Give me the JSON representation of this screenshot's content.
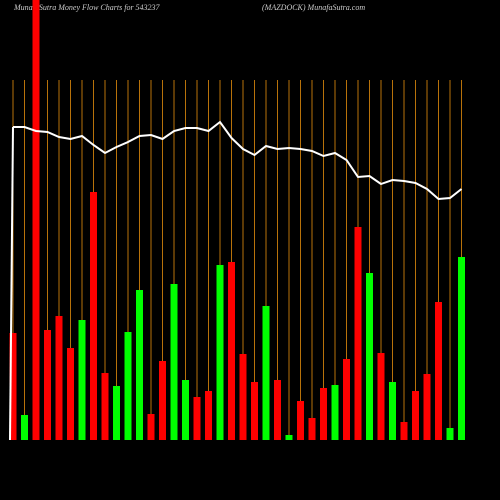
{
  "chart_data": {
    "type": "bar",
    "title": "MunafaSutra  Money Flow  Charts for 543237",
    "subtitle": "(MAZDOCK) MunafaSutra.com",
    "values": [
      107,
      25,
      440,
      110,
      124,
      92,
      120,
      248,
      67,
      54,
      108,
      150,
      26,
      79,
      156,
      60,
      43,
      49,
      175,
      178,
      86,
      58,
      134,
      60,
      5,
      39,
      22,
      52,
      55,
      81,
      213,
      167,
      87,
      58,
      18,
      49,
      66,
      138,
      12,
      183
    ],
    "colors": [
      "#ff0000",
      "#00ff00",
      "#ff0000",
      "#ff0000",
      "#ff0000",
      "#ff0000",
      "#00ff00",
      "#ff0000",
      "#ff0000",
      "#00ff00",
      "#00ff00",
      "#00ff00",
      "#ff0000",
      "#ff0000",
      "#00ff00",
      "#00ff00",
      "#ff0000",
      "#ff0000",
      "#00ff00",
      "#ff0000",
      "#ff0000",
      "#ff0000",
      "#00ff00",
      "#ff0000",
      "#00ff00",
      "#ff0000",
      "#ff0000",
      "#ff0000",
      "#00ff00",
      "#ff0000",
      "#ff0000",
      "#00ff00",
      "#ff0000",
      "#00ff00",
      "#ff0000",
      "#ff0000",
      "#ff0000",
      "#ff0000",
      "#00ff00",
      "#00ff00"
    ],
    "line_values": [
      313,
      313,
      309,
      308,
      303,
      301,
      304,
      295,
      287,
      293,
      298,
      304,
      305,
      301,
      309,
      312,
      312,
      309,
      318,
      302,
      291,
      285,
      294,
      291,
      292,
      291,
      289,
      284,
      287,
      280,
      263,
      264,
      256,
      260,
      259,
      257,
      251,
      241,
      242,
      251
    ],
    "line_color": "#ffffff",
    "ylim": [
      0,
      440
    ]
  }
}
